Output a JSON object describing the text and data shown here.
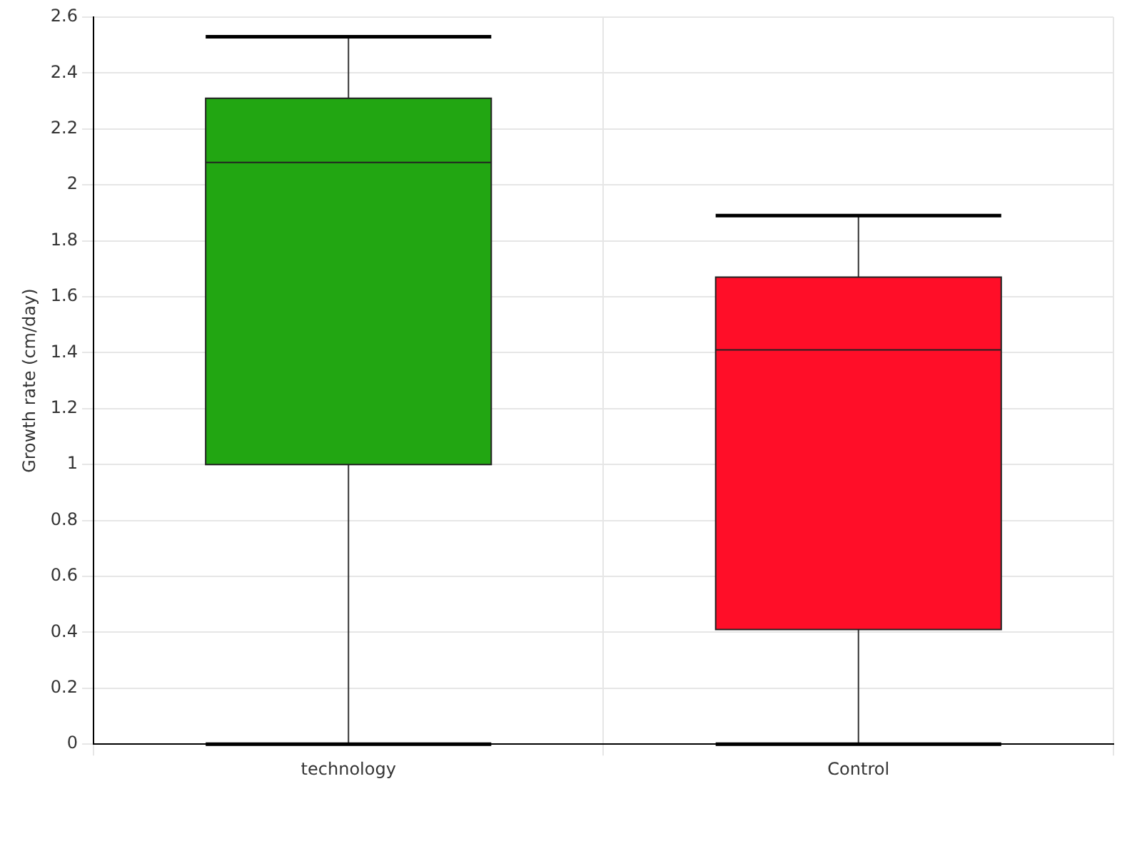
{
  "chart_data": {
    "type": "box",
    "ylabel": "Growth rate (cm/day)",
    "categories": [
      "technology",
      "Control"
    ],
    "boxes": [
      {
        "low": 0,
        "q1": 1.0,
        "median": 2.08,
        "q3": 2.31,
        "high": 2.53
      },
      {
        "low": 0,
        "q1": 0.41,
        "median": 1.41,
        "q3": 1.67,
        "high": 1.89
      }
    ],
    "colors": [
      "#22a612",
      "#ff0e28"
    ],
    "ylim": [
      0,
      2.6
    ],
    "yticks": [
      0,
      0.2,
      0.4,
      0.6,
      0.8,
      1,
      1.2,
      1.4,
      1.6,
      1.8,
      2,
      2.2,
      2.4,
      2.6
    ],
    "grid": true
  }
}
